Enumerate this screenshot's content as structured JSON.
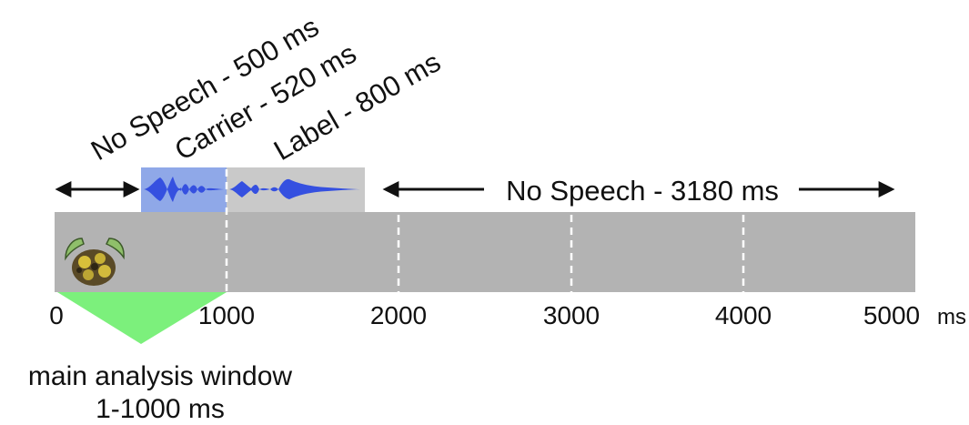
{
  "segments": {
    "no_speech_1": "No Speech - 500 ms",
    "carrier": "Carrier - 520 ms",
    "label": "Label - 800 ms",
    "no_speech_2": "No Speech - 3180 ms"
  },
  "axis": {
    "ticks": [
      "0",
      "1000",
      "2000",
      "3000",
      "4000",
      "5000"
    ],
    "unit": "ms"
  },
  "analysis_window": {
    "title": "main analysis window",
    "range": "1-1000 ms"
  },
  "colors": {
    "track": "#b3b3b3",
    "carrier": "#8fa8e8",
    "label": "#c9c9c9",
    "waveform": "#3550e0",
    "window": "#7cf07c"
  },
  "icons": {
    "stimulus": "fuzzy-creature-icon"
  }
}
